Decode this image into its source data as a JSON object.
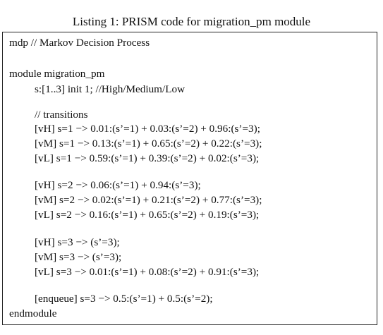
{
  "caption": "Listing 1: PRISM code for migration_pm module",
  "listing": {
    "lines": [
      "mdp // Markov Decision Process",
      "",
      "module migration_pm",
      "s:[1..3] init 1; //High/Medium/Low",
      "",
      "// transitions",
      "[vH] s=1 −> 0.01:(s’=1) + 0.03:(s’=2) + 0.96:(s’=3);",
      "[vM] s=1 −> 0.13:(s’=1) + 0.65:(s’=2) + 0.22:(s’=3);",
      "[vL] s=1 −> 0.59:(s’=1) + 0.39:(s’=2) + 0.02:(s’=3);",
      "",
      "[vH] s=2 −> 0.06:(s’=1) + 0.94:(s’=3);",
      "[vM] s=2 −> 0.02:(s’=1) + 0.21:(s’=2) + 0.77:(s’=3);",
      "[vL] s=2 −> 0.16:(s’=1) + 0.65:(s’=2) + 0.19:(s’=3);",
      "",
      "[vH] s=3 −> (s’=3);",
      "[vM] s=3 −> (s’=3);",
      "[vL] s=3 −> 0.01:(s’=1) + 0.08:(s’=2) + 0.91:(s’=3);",
      "",
      "[enqueue] s=3 −> 0.5:(s’=1) + 0.5:(s’=2);",
      "endmodule"
    ]
  }
}
